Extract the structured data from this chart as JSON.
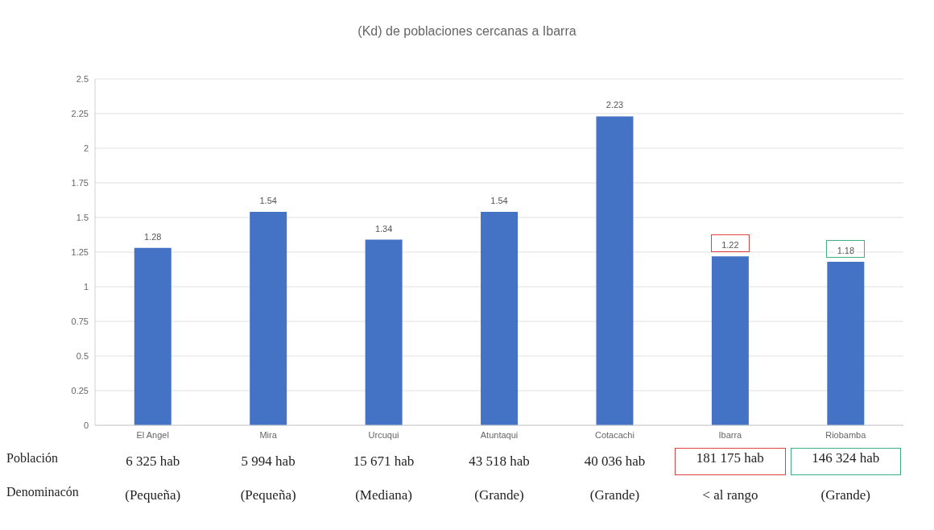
{
  "chart_data": {
    "type": "bar",
    "title": "(Kd) de poblaciones cercanas  a Ibarra",
    "categories": [
      "El Angel",
      "Mira",
      "Urcuqui",
      "Atuntaqui",
      "Cotacachi",
      "Ibarra",
      "Riobamba"
    ],
    "values": [
      1.28,
      1.54,
      1.34,
      1.54,
      2.23,
      1.22,
      1.18
    ],
    "color": "#4472c4",
    "ylim": [
      0,
      2.5
    ],
    "yticks": [
      0,
      0.25,
      0.5,
      0.75,
      1,
      1.25,
      1.5,
      1.75,
      2,
      2.25,
      2.5
    ],
    "grid": "y",
    "data_labels": true,
    "annotations": [
      "Población",
      "6 325 hab",
      "5 994 hab",
      "15 671 hab",
      "43 518 hab",
      "40 036 hab",
      "181 175 hab",
      "146 324 hab",
      "Denominacón",
      "(Pequeña)",
      "(Pequeña)",
      "(Mediana)",
      "(Grande)",
      "(Grande)",
      "< al rango",
      "(Grande)"
    ]
  }
}
